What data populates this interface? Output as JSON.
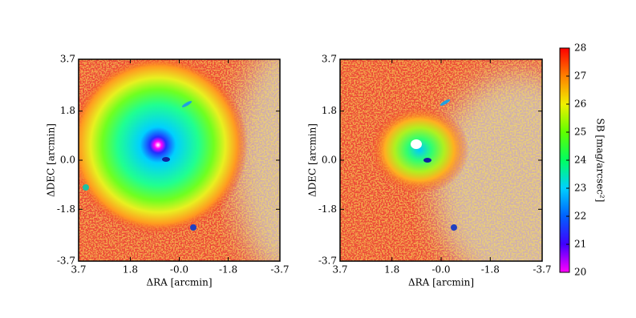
{
  "chart_data": [
    {
      "type": "image",
      "xlabel": "ΔRA [arcmin]",
      "ylabel": "ΔDEC [arcmin]",
      "xlim": [
        3.7,
        -3.7
      ],
      "ylim": [
        -3.7,
        3.7
      ],
      "xticks": [
        3.7,
        1.8,
        {
          "value": 0,
          "label": "-0.0"
        },
        -1.8,
        -3.7
      ],
      "yticks": [
        3.7,
        1.8,
        {
          "value": 0,
          "label": "0.0"
        },
        -1.8,
        -3.7
      ]
    },
    {
      "type": "image",
      "xlabel": "ΔRA [arcmin]",
      "ylabel": "ΔDEC [arcmin]",
      "xlim": [
        3.7,
        -3.7
      ],
      "ylim": [
        -3.7,
        3.7
      ],
      "xticks": [
        3.7,
        1.8,
        {
          "value": 0,
          "label": "-0.0"
        },
        -1.8,
        -3.7
      ],
      "yticks": [
        3.7,
        1.8,
        {
          "value": 0,
          "label": "0.0"
        },
        -1.8,
        -3.7
      ]
    },
    {
      "type": "colorbar",
      "label": "SB [mag/arcsec²]",
      "zlim": [
        20,
        28
      ],
      "zticks": [
        20,
        21,
        22,
        23,
        24,
        25,
        26,
        27,
        28
      ]
    }
  ]
}
